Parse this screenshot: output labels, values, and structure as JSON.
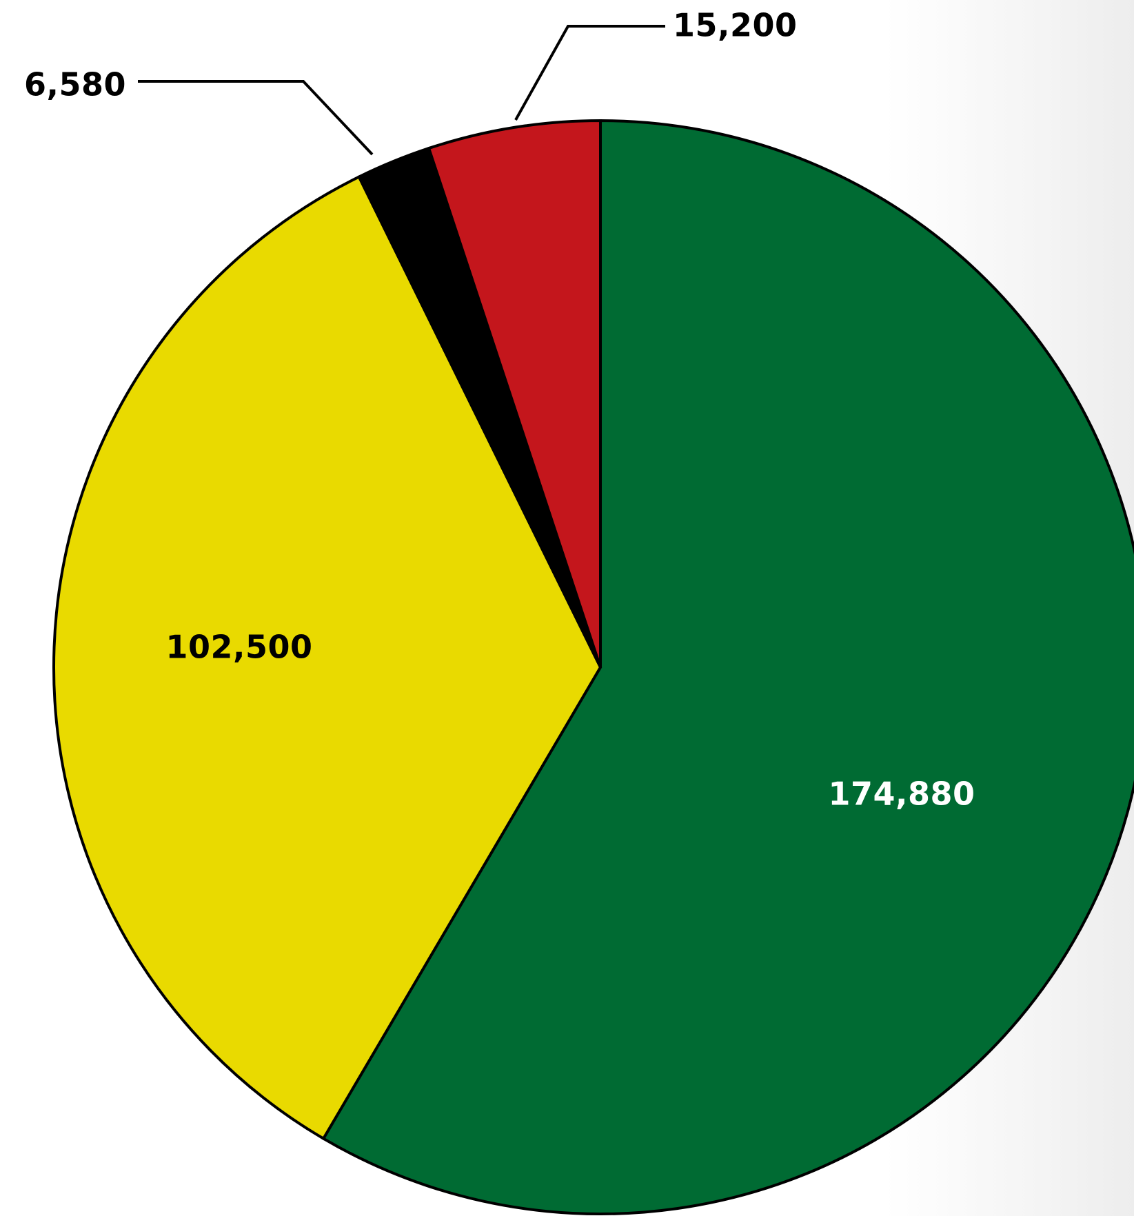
{
  "chart_data": {
    "type": "pie",
    "title": "",
    "slices": [
      {
        "value": 174880,
        "label": "174,880",
        "color": "#006b33",
        "label_color": "#ffffff",
        "label_position": "inside"
      },
      {
        "value": 102500,
        "label": "102,500",
        "color": "#e9da00",
        "label_color": "#000000",
        "label_position": "inside"
      },
      {
        "value": 6580,
        "label": "6,580",
        "color": "#000000",
        "label_color": "#000000",
        "label_position": "outside-left"
      },
      {
        "value": 15200,
        "label": "15,200",
        "color": "#c4161c",
        "label_color": "#000000",
        "label_position": "outside-top"
      }
    ],
    "direction": "clockwise",
    "start": "top",
    "legend": "none"
  }
}
